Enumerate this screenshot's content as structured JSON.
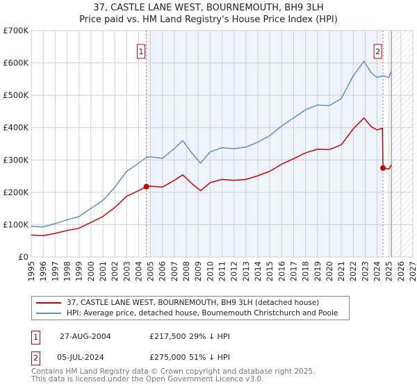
{
  "header": {
    "line1": "37, CASTLE LANE WEST, BOURNEMOUTH, BH9 3LH",
    "line2": "Price paid vs. HM Land Registry's House Price Index (HPI)"
  },
  "colors": {
    "property": "#cc0000",
    "hpi": "#5b8fd4",
    "shade": "#eef3fc"
  },
  "chart_data": {
    "type": "line",
    "xlim": [
      1995,
      2027
    ],
    "ylim": [
      0,
      700000
    ],
    "yticks": [
      0,
      100000,
      200000,
      300000,
      400000,
      500000,
      600000,
      700000
    ],
    "ytick_labels": [
      "£0",
      "£100K",
      "£200K",
      "£300K",
      "£400K",
      "£500K",
      "£600K",
      "£700K"
    ],
    "xticks": [
      1995,
      1996,
      1997,
      1998,
      1999,
      2000,
      2001,
      2002,
      2003,
      2004,
      2005,
      2006,
      2007,
      2008,
      2009,
      2010,
      2011,
      2012,
      2013,
      2014,
      2015,
      2016,
      2017,
      2018,
      2019,
      2020,
      2021,
      2022,
      2023,
      2024,
      2025,
      2026,
      2027
    ],
    "forecast_start": 2025.2,
    "series": [
      {
        "name": "37, CASTLE LANE WEST, BOURNEMOUTH, BH9 3LH (detached house)",
        "x": [
          1995,
          1996,
          1997,
          1998,
          1999,
          2000,
          2001,
          2002,
          2003,
          2004,
          2004.65,
          2005,
          2006,
          2007,
          2007.7,
          2008.5,
          2009.2,
          2010,
          2011,
          2012,
          2013,
          2014,
          2015,
          2016,
          2017,
          2018,
          2019,
          2020,
          2021,
          2022,
          2022.9,
          2023.5,
          2024,
          2024.45,
          2024.5,
          2025,
          2025.2
        ],
        "y": [
          68000,
          66000,
          73000,
          82000,
          89000,
          107000,
          125000,
          153000,
          188000,
          205000,
          217500,
          219000,
          216000,
          237000,
          254000,
          226000,
          205000,
          230000,
          240000,
          237000,
          240000,
          251000,
          265000,
          287000,
          304000,
          322000,
          333000,
          332000,
          347000,
          396000,
          430000,
          403000,
          393000,
          398000,
          275000,
          272000,
          285000
        ]
      },
      {
        "name": "HPI: Average price, detached house, Bournemouth Christchurch and Poole",
        "x": [
          1995,
          1996,
          1997,
          1998,
          1999,
          2000,
          2001,
          2002,
          2003,
          2004,
          2004.65,
          2005,
          2006,
          2007,
          2007.7,
          2008.5,
          2009.2,
          2010,
          2011,
          2012,
          2013,
          2014,
          2015,
          2016,
          2017,
          2018,
          2019,
          2020,
          2021,
          2022,
          2022.9,
          2023.5,
          2024,
          2024.5,
          2025,
          2025.2
        ],
        "y": [
          95000,
          93000,
          103000,
          115000,
          125000,
          150000,
          175000,
          215000,
          265000,
          290000,
          308000,
          310000,
          305000,
          335000,
          360000,
          320000,
          290000,
          325000,
          338000,
          335000,
          340000,
          355000,
          375000,
          405000,
          430000,
          455000,
          470000,
          468000,
          490000,
          560000,
          605000,
          570000,
          555000,
          560000,
          555000,
          575000
        ]
      }
    ],
    "sales": [
      {
        "label": "1",
        "x": 2004.65,
        "y": 217500
      },
      {
        "label": "2",
        "x": 2024.5,
        "y": 275000
      }
    ]
  },
  "legend": {
    "property": "37, CASTLE LANE WEST, BOURNEMOUTH, BH9 3LH (detached house)",
    "hpi": "HPI: Average price, detached house, Bournemouth Christchurch and Poole"
  },
  "sales_table": [
    {
      "num": "1",
      "date": "27-AUG-2004",
      "price": "£217,500",
      "delta": "29% ↓ HPI"
    },
    {
      "num": "2",
      "date": "05-JUL-2024",
      "price": "£275,000",
      "delta": "51% ↓ HPI"
    }
  ],
  "footer": {
    "line1": "Contains HM Land Registry data © Crown copyright and database right 2025.",
    "line2": "This data is licensed under the Open Government Licence v3.0."
  }
}
